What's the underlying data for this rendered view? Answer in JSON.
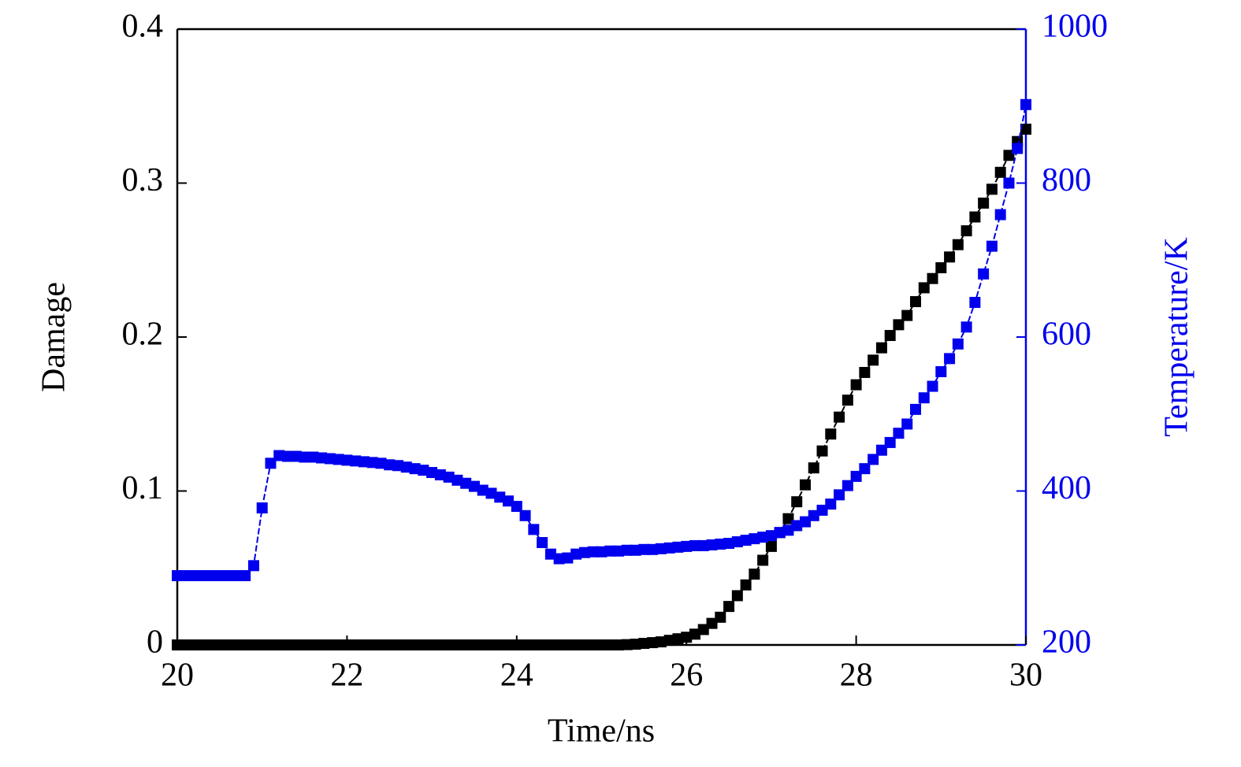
{
  "chart_data": {
    "type": "line",
    "xlabel": "Time/ns",
    "ylabel": "Damage",
    "y2label": "Temperature/K",
    "x": [
      20.0,
      20.1,
      20.2,
      20.3,
      20.4,
      20.5,
      20.6,
      20.7,
      20.8,
      20.9,
      21.0,
      21.1,
      21.2,
      21.3,
      21.4,
      21.5,
      21.6,
      21.7,
      21.8,
      21.9,
      22.0,
      22.1,
      22.2,
      22.3,
      22.4,
      22.5,
      22.6,
      22.7,
      22.8,
      22.9,
      23.0,
      23.1,
      23.2,
      23.3,
      23.4,
      23.5,
      23.6,
      23.7,
      23.8,
      23.9,
      24.0,
      24.1,
      24.2,
      24.3,
      24.4,
      24.5,
      24.6,
      24.7,
      24.8,
      24.9,
      25.0,
      25.1,
      25.2,
      25.3,
      25.4,
      25.5,
      25.6,
      25.7,
      25.8,
      25.9,
      26.0,
      26.1,
      26.2,
      26.3,
      26.4,
      26.5,
      26.6,
      26.7,
      26.8,
      26.9,
      27.0,
      27.1,
      27.2,
      27.3,
      27.4,
      27.5,
      27.6,
      27.7,
      27.8,
      27.9,
      28.0,
      28.1,
      28.2,
      28.3,
      28.4,
      28.5,
      28.6,
      28.7,
      28.8,
      28.9,
      29.0,
      29.1,
      29.2,
      29.3,
      29.4,
      29.5,
      29.6,
      29.7,
      29.8,
      29.9,
      30.0
    ],
    "series": [
      {
        "color": "#000000",
        "axis": "y",
        "values": [
          0,
          0,
          0,
          0,
          0,
          0,
          0,
          0,
          0,
          0,
          0,
          0,
          0,
          0,
          0,
          0,
          0,
          0,
          0,
          0,
          0,
          0,
          0,
          0,
          0,
          0,
          0,
          0,
          0,
          0,
          0,
          0,
          0,
          0,
          0,
          0,
          0,
          0,
          0,
          0,
          0,
          0,
          0,
          0,
          0,
          0,
          0,
          0,
          0,
          0,
          0,
          0,
          0,
          0.0002,
          0.0005,
          0.001,
          0.0015,
          0.002,
          0.003,
          0.004,
          0.005,
          0.007,
          0.01,
          0.014,
          0.018,
          0.025,
          0.032,
          0.039,
          0.046,
          0.055,
          0.064,
          0.073,
          0.082,
          0.093,
          0.104,
          0.115,
          0.126,
          0.137,
          0.148,
          0.159,
          0.169,
          0.177,
          0.185,
          0.193,
          0.201,
          0.208,
          0.214,
          0.223,
          0.232,
          0.238,
          0.245,
          0.252,
          0.26,
          0.269,
          0.278,
          0.287,
          0.296,
          0.307,
          0.318,
          0.327,
          0.335
        ]
      },
      {
        "color": "#0000ee",
        "axis": "y2",
        "values": [
          290,
          290,
          290,
          290,
          290,
          290,
          290,
          290,
          290,
          303,
          378,
          436,
          446,
          445,
          445,
          444,
          444,
          443,
          442,
          441,
          440,
          439,
          438,
          437,
          436,
          434,
          433,
          431,
          429,
          427,
          424,
          421,
          418,
          414,
          410,
          406,
          401,
          397,
          392,
          387,
          380,
          368,
          350,
          333,
          318,
          312,
          313,
          318,
          320,
          321,
          321,
          322,
          322,
          323,
          323,
          324,
          324,
          325,
          326,
          327,
          328,
          329,
          329,
          330,
          331,
          332,
          334,
          336,
          338,
          340,
          342,
          346,
          349,
          355,
          360,
          368,
          375,
          383,
          395,
          407,
          419,
          429,
          441,
          453,
          463,
          475,
          487,
          506,
          521,
          536,
          555,
          572,
          591,
          613,
          645,
          682,
          718,
          759,
          800,
          845,
          902
        ]
      }
    ],
    "xlim": [
      20,
      30
    ],
    "xticks": [
      20,
      22,
      24,
      26,
      28,
      30
    ],
    "ylim": [
      0,
      0.4
    ],
    "yticks": [
      0,
      0.1,
      0.2,
      0.3,
      0.4
    ],
    "y2lim": [
      200,
      1000
    ],
    "y2ticks": [
      200,
      400,
      600,
      800,
      1000
    ],
    "y2color": "#0000ee"
  }
}
